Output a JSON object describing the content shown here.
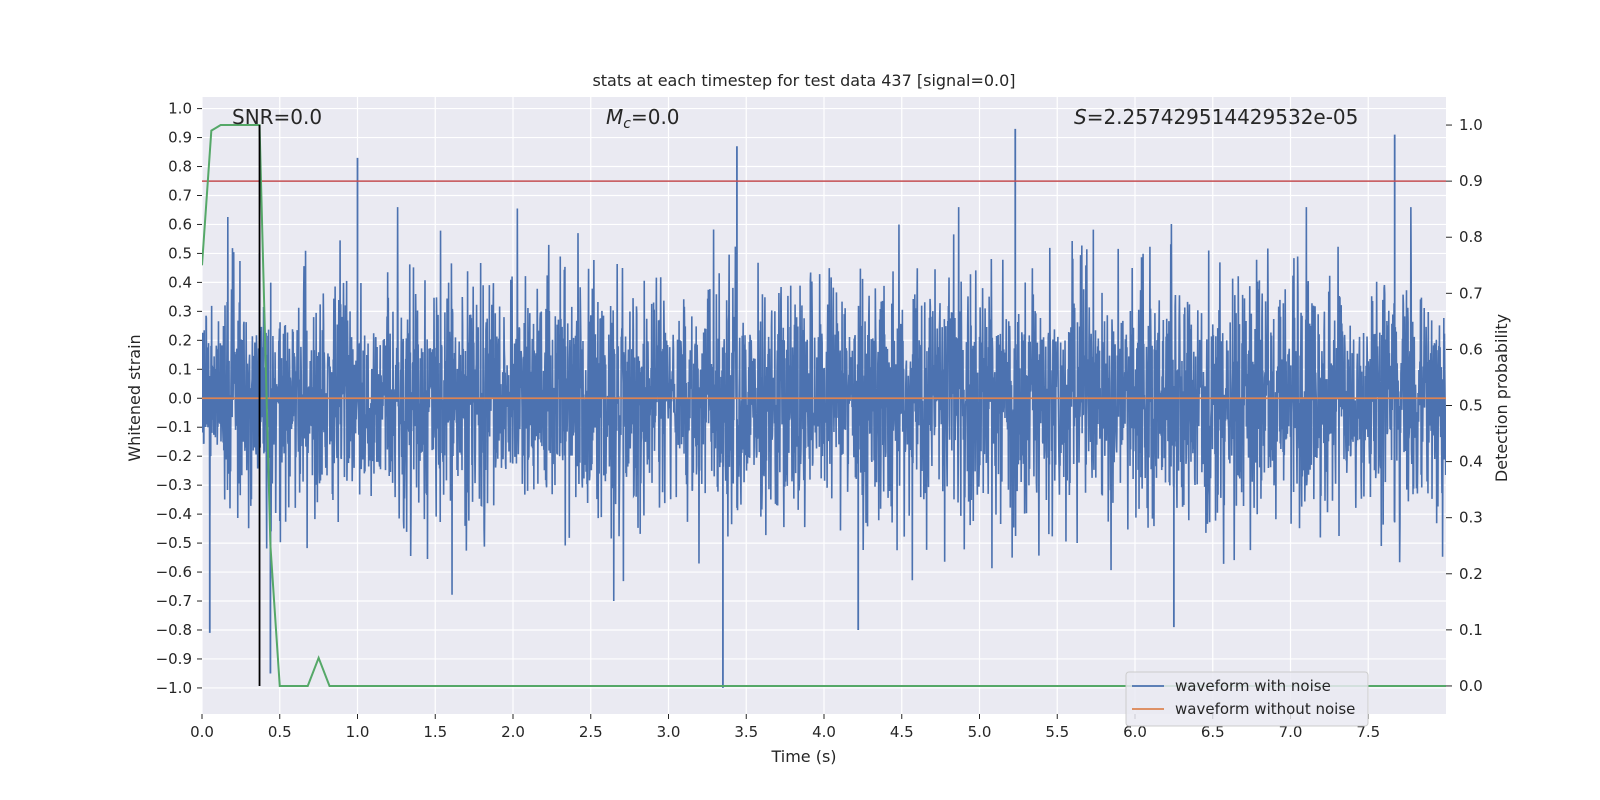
{
  "chart_data": {
    "type": "line",
    "title": "stats at each timestep for test data 437 [signal=0.0]",
    "xlabel": "Time (s)",
    "ylabel": "Whitened strain",
    "y2label": "Detection probability",
    "xlim": [
      0.0,
      8.0
    ],
    "ylim": [
      -1.09,
      1.04
    ],
    "y2lim": [
      -0.05,
      1.05
    ],
    "x_ticks": [
      0.0,
      0.5,
      1.0,
      1.5,
      2.0,
      2.5,
      3.0,
      3.5,
      4.0,
      4.5,
      5.0,
      5.5,
      6.0,
      6.5,
      7.0,
      7.5
    ],
    "x_tick_labels": [
      "0.0",
      "0.5",
      "1.0",
      "1.5",
      "2.0",
      "2.5",
      "3.0",
      "3.5",
      "4.0",
      "4.5",
      "5.0",
      "5.5",
      "6.0",
      "6.5",
      "7.0",
      "7.5"
    ],
    "y_ticks": [
      1.0,
      0.9,
      0.8,
      0.7,
      0.6,
      0.5,
      0.4,
      0.3,
      0.2,
      0.1,
      0.0,
      -0.1,
      -0.2,
      -0.3,
      -0.4,
      -0.5,
      -0.6,
      -0.7,
      -0.8,
      -0.9,
      -1.0
    ],
    "y_tick_labels": [
      "1.0",
      "0.9",
      "0.8",
      "0.7",
      "0.6",
      "0.5",
      "0.4",
      "0.3",
      "0.2",
      "0.1",
      "0.0",
      "−0.1",
      "−0.2",
      "−0.3",
      "−0.4",
      "−0.5",
      "−0.6",
      "−0.7",
      "−0.8",
      "−0.9",
      "−1.0"
    ],
    "y2_ticks": [
      1.0,
      0.9,
      0.8,
      0.7,
      0.6,
      0.5,
      0.4,
      0.3,
      0.2,
      0.1,
      0.0
    ],
    "y2_tick_labels": [
      "1.0",
      "0.9",
      "0.8",
      "0.7",
      "0.6",
      "0.5",
      "0.4",
      "0.3",
      "0.2",
      "0.1",
      "0.0"
    ],
    "grid": true,
    "annotations": {
      "snr": "SNR=0.0",
      "mc_symbol": "M",
      "mc_subscript": "c",
      "mc_value": "=0.0",
      "s_symbol": "S",
      "s_value": "=2.257429514429532e-05"
    },
    "legend": {
      "location": "lower-right",
      "entries": [
        "waveform with noise",
        "waveform without noise"
      ]
    },
    "series": [
      {
        "name": "waveform with noise",
        "axis": "left",
        "color": "#4c72b0",
        "description": "whitened noisy strain, dense random samples roughly within ±0.6",
        "spikes": [
          {
            "x": 0.05,
            "y": -0.81
          },
          {
            "x": 0.44,
            "y": -0.95
          },
          {
            "x": 1.0,
            "y": 0.83
          },
          {
            "x": 3.35,
            "y": -1.0
          },
          {
            "x": 3.44,
            "y": 0.87
          },
          {
            "x": 4.22,
            "y": -0.8
          },
          {
            "x": 5.23,
            "y": 0.93
          },
          {
            "x": 6.25,
            "y": -0.79
          },
          {
            "x": 7.67,
            "y": 0.91
          }
        ]
      },
      {
        "name": "waveform without noise",
        "axis": "left",
        "color": "#dd8452",
        "x": [
          0.0,
          8.0
        ],
        "y": [
          0.0,
          0.0
        ]
      },
      {
        "name": "detection probability",
        "axis": "right",
        "color": "#55a868",
        "x": [
          0.0,
          0.06,
          0.12,
          0.2,
          0.3,
          0.37,
          0.44,
          0.5,
          0.6,
          0.68,
          0.75,
          0.82,
          0.88,
          1.0,
          8.0
        ],
        "y": [
          0.75,
          0.99,
          1.0,
          1.0,
          1.0,
          1.0,
          0.25,
          0.0,
          0.0,
          0.0,
          0.05,
          0.0,
          0.0,
          0.0,
          0.0
        ]
      },
      {
        "name": "threshold",
        "axis": "right",
        "color": "#c44e52",
        "value": 0.9
      }
    ],
    "marker_line": {
      "x": 0.37,
      "color": "#000000"
    }
  }
}
